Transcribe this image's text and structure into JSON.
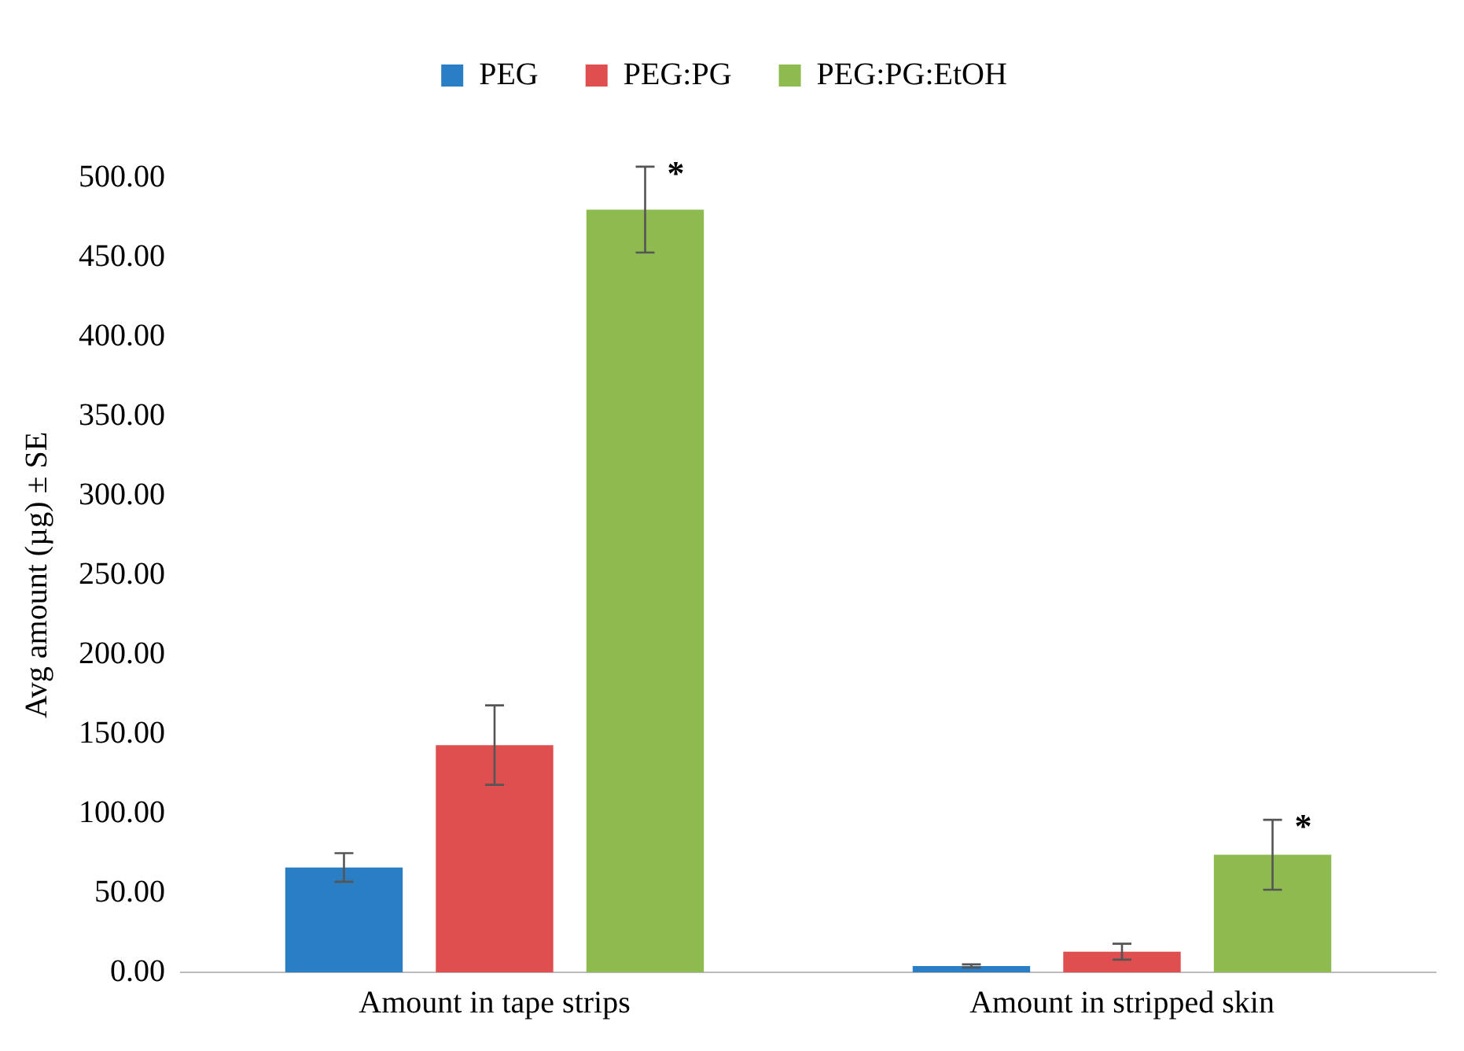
{
  "chart_data": {
    "type": "bar",
    "ylabel": "Avg amount (µg) ± SE",
    "categories": [
      "Amount in tape strips",
      "Amount in stripped skin"
    ],
    "series": [
      {
        "name": "PEG",
        "color": "#2a7ec4",
        "values": [
          66,
          4
        ],
        "errors": [
          9,
          1
        ]
      },
      {
        "name": "PEG:PG",
        "color": "#df4f4f",
        "values": [
          143,
          13
        ],
        "errors": [
          25,
          5
        ]
      },
      {
        "name": "PEG:PG:EtOH",
        "color": "#8dbb50",
        "values": [
          480,
          74
        ],
        "errors": [
          27,
          22
        ]
      }
    ],
    "ylim": [
      0,
      500
    ],
    "yticks": [
      {
        "value": 0,
        "label": "0.00"
      },
      {
        "value": 50,
        "label": "50.00"
      },
      {
        "value": 100,
        "label": "100.00"
      },
      {
        "value": 150,
        "label": "150.00"
      },
      {
        "value": 200,
        "label": "200.00"
      },
      {
        "value": 250,
        "label": "250.00"
      },
      {
        "value": 300,
        "label": "300.00"
      },
      {
        "value": 350,
        "label": "350.00"
      },
      {
        "value": 400,
        "label": "400.00"
      },
      {
        "value": 450,
        "label": "450.00"
      },
      {
        "value": 500,
        "label": "500.00"
      }
    ],
    "grid": false,
    "legend": "top",
    "annotations": [
      "*",
      "*"
    ]
  }
}
